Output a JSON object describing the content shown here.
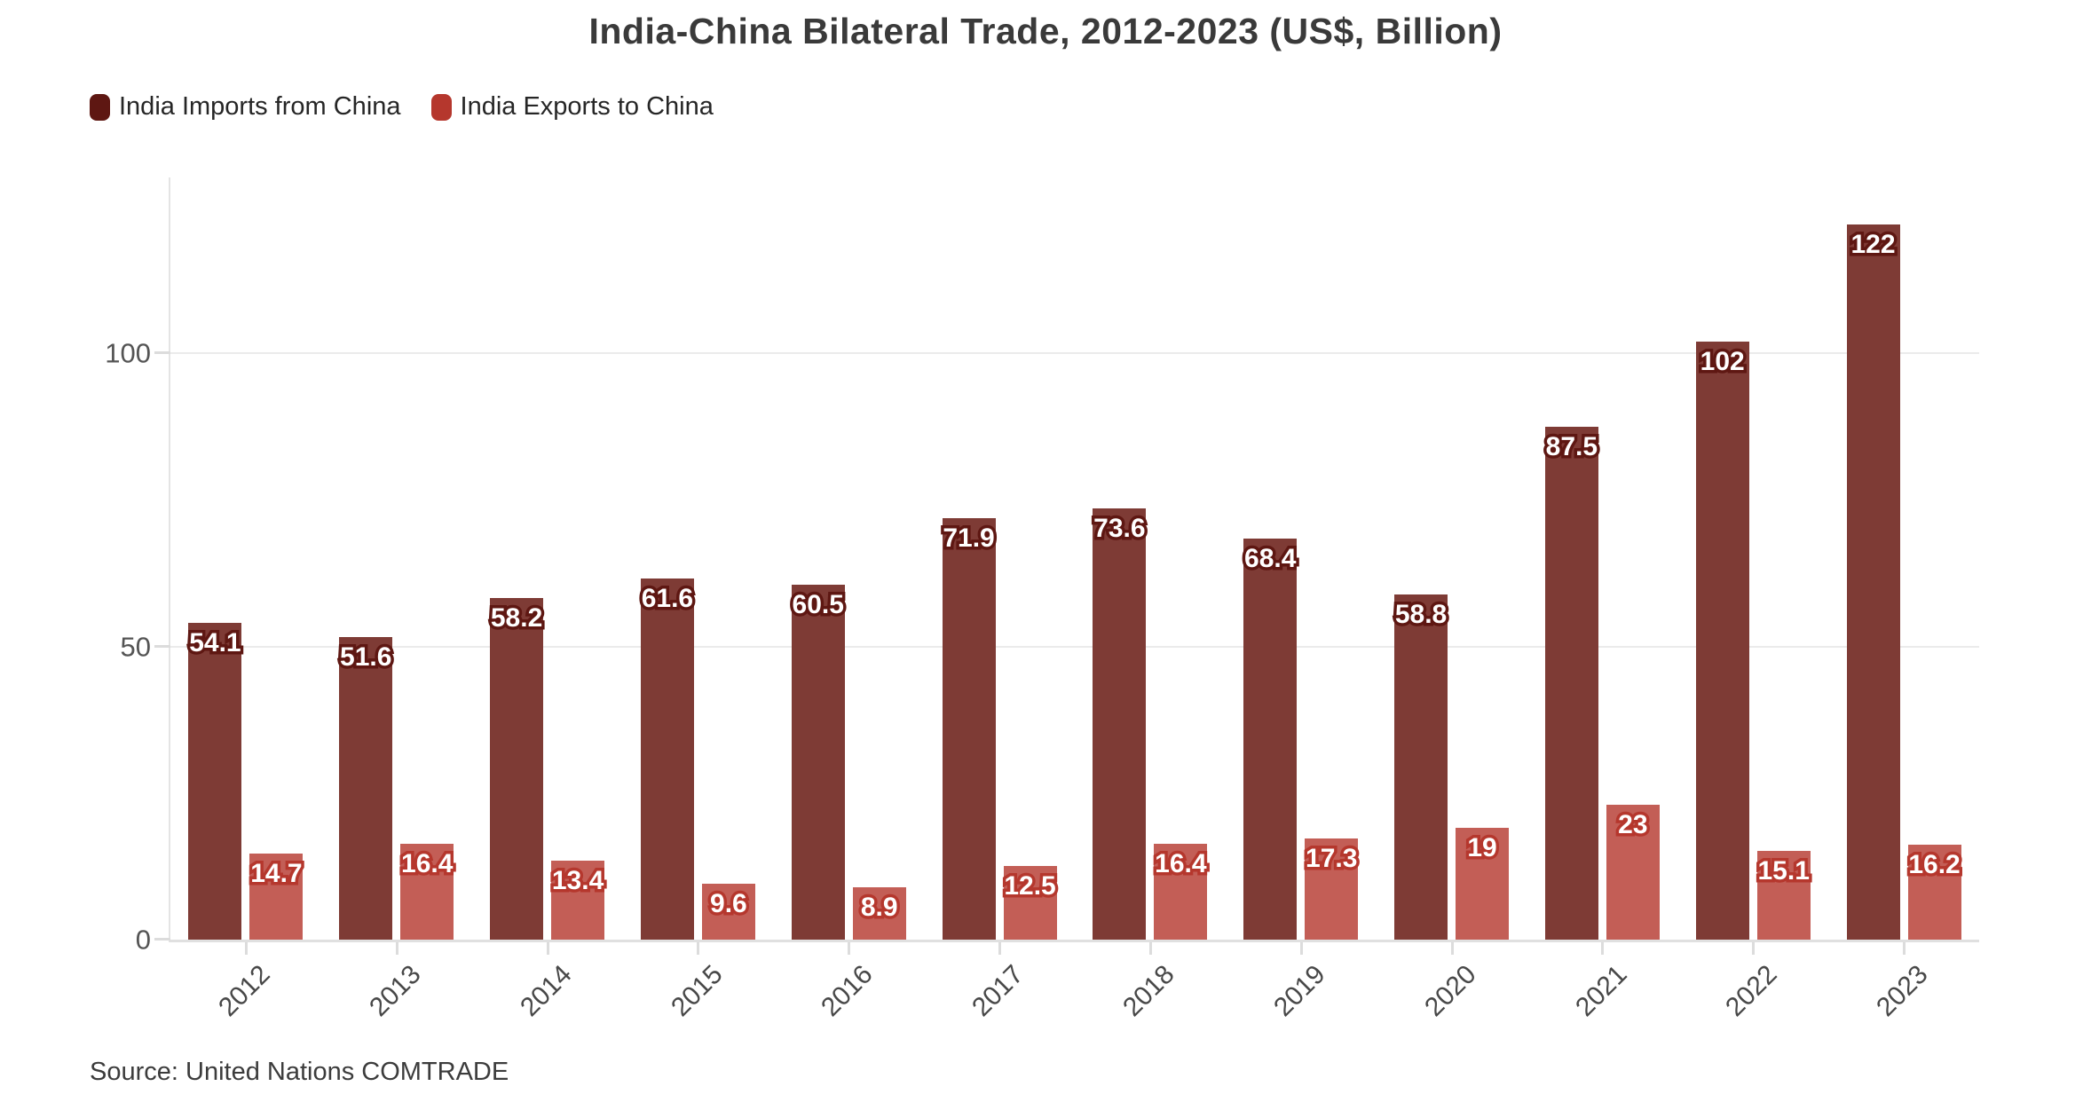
{
  "title": "India-China Bilateral Trade, 2012-2023 (US$, Billion)",
  "source": "Source: United Nations COMTRADE",
  "legend": [
    {
      "label": "India Imports from China",
      "color": "#5e1712"
    },
    {
      "label": "India Exports to China",
      "color": "#b5372d"
    }
  ],
  "colors": {
    "imports_bar": "#7e3b35",
    "imports_halo": "#5e1712",
    "exports_bar": "#c35e56",
    "exports_halo": "#b5372d",
    "grid": "#ebebeb",
    "axis": "#e0e0e0",
    "axis_text": "#545454"
  },
  "chart_data": {
    "type": "bar",
    "title": "India-China Bilateral Trade, 2012-2023 (US$, Billion)",
    "categories": [
      "2012",
      "2013",
      "2014",
      "2015",
      "2016",
      "2017",
      "2018",
      "2019",
      "2020",
      "2021",
      "2022",
      "2023"
    ],
    "series": [
      {
        "name": "India Imports from China",
        "color": "#5e1712",
        "bar_fill": "#7e3b35",
        "values": [
          54.1,
          51.6,
          58.2,
          61.6,
          60.5,
          71.9,
          73.6,
          68.4,
          58.8,
          87.5,
          102,
          122
        ]
      },
      {
        "name": "India Exports to China",
        "color": "#b5372d",
        "bar_fill": "#c35e56",
        "values": [
          14.7,
          16.4,
          13.4,
          9.6,
          8.9,
          12.5,
          16.4,
          17.3,
          19,
          23,
          15.1,
          16.2
        ]
      }
    ],
    "xlabel": "",
    "ylabel": "",
    "y_ticks": [
      0,
      50,
      100
    ],
    "ylim": [
      0,
      130
    ],
    "grid": "horizontal",
    "legend_position": "top-left",
    "value_labels": true
  }
}
